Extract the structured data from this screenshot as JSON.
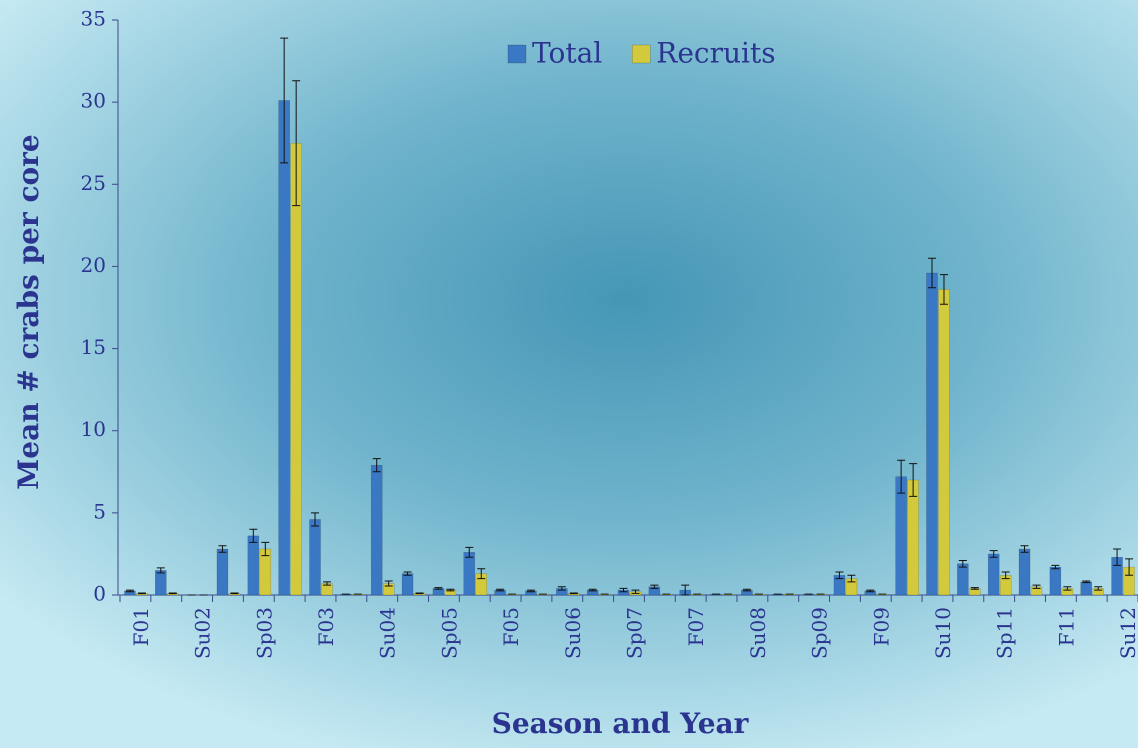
{
  "chart_data": {
    "type": "bar",
    "x_label": "Season and Year",
    "y_label": "Mean # crabs per core",
    "categories": [
      "F01",
      null,
      "Su02",
      null,
      "Sp03",
      null,
      "F03",
      null,
      "Su04",
      null,
      "Sp05",
      null,
      "F05",
      null,
      "Su06",
      null,
      "Sp07",
      null,
      "F07",
      null,
      "Su08",
      null,
      "Sp09",
      null,
      "F09",
      null,
      "Su10",
      null,
      "Sp11",
      null,
      "F11",
      null,
      "Su12"
    ],
    "series": [
      {
        "name": "Total",
        "color": "#3a78c4",
        "values": [
          0.25,
          1.5,
          0,
          2.8,
          3.6,
          30.1,
          4.6,
          0.05,
          7.9,
          1.3,
          0.4,
          2.6,
          0.3,
          0.25,
          0.4,
          0.3,
          0.3,
          0.5,
          0.3,
          0.05,
          0.3,
          0.05,
          0.05,
          1.2,
          0.25,
          7.2,
          19.6,
          1.9,
          2.5,
          2.8,
          1.7,
          0.8,
          2.3
        ],
        "errors": [
          0.05,
          0.15,
          0,
          0.2,
          0.4,
          3.8,
          0.4,
          0,
          0.4,
          0.1,
          0.05,
          0.3,
          0.05,
          0.05,
          0.1,
          0.05,
          0.1,
          0.1,
          0.3,
          0,
          0.05,
          0,
          0,
          0.2,
          0.05,
          1.0,
          0.9,
          0.2,
          0.2,
          0.2,
          0.1,
          0.05,
          0.5
        ]
      },
      {
        "name": "Recruits",
        "color": "#d2c93c",
        "values": [
          0.1,
          0.1,
          0,
          0.1,
          2.8,
          27.5,
          0.7,
          0.05,
          0.7,
          0.1,
          0.3,
          1.3,
          0.05,
          0.05,
          0.1,
          0.05,
          0.2,
          0.05,
          0.05,
          0.05,
          0.05,
          0.05,
          0.05,
          1.0,
          0.05,
          7.0,
          18.6,
          0.4,
          1.2,
          0.5,
          0.4,
          0.4,
          1.7
        ],
        "errors": [
          0.02,
          0.02,
          0,
          0.02,
          0.4,
          3.8,
          0.1,
          0,
          0.15,
          0.02,
          0.05,
          0.3,
          0,
          0,
          0.02,
          0,
          0.1,
          0,
          0,
          0,
          0,
          0,
          0,
          0.2,
          0,
          1.0,
          0.9,
          0.05,
          0.2,
          0.1,
          0.1,
          0.1,
          0.5
        ]
      }
    ],
    "ylim": [
      0,
      35
    ],
    "yticks": [
      0,
      5,
      10,
      15,
      20,
      25,
      30,
      35
    ],
    "legend": "top"
  }
}
